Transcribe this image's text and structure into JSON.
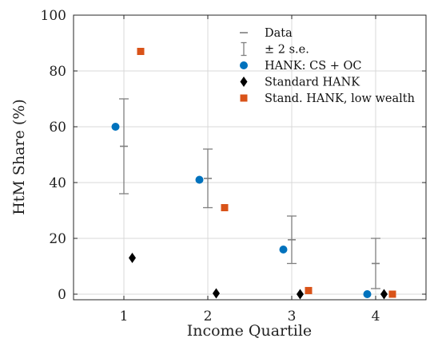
{
  "chart_data": {
    "type": "scatter",
    "xlabel": "Income Quartile",
    "ylabel": "HtM Share (%)",
    "xlim": [
      0.4,
      4.6
    ],
    "ylim": [
      -2,
      100
    ],
    "x_ticks": [
      "1",
      "2",
      "3",
      "4"
    ],
    "y_ticks": [
      "0",
      "20",
      "40",
      "60",
      "80",
      "100"
    ],
    "grid": true,
    "legend_placement": "top-right",
    "colors": {
      "data": "#7f7f7f",
      "hank_cs_oc": "#0072bd",
      "standard_hank": "#000000",
      "low_wealth": "#d95319"
    },
    "legend": [
      {
        "key": "data",
        "label": "Data"
      },
      {
        "key": "se",
        "label": "± 2 s.e."
      },
      {
        "key": "hank_cs_oc",
        "label": "HANK: CS + OC"
      },
      {
        "key": "standard_hank",
        "label": "Standard HANK"
      },
      {
        "key": "low_wealth",
        "label": "Stand. HANK, low wealth"
      }
    ],
    "series": [
      {
        "key": "data",
        "marker": "dash",
        "x": [
          1,
          2,
          3,
          4
        ],
        "y": [
          53,
          41.5,
          19.5,
          11
        ],
        "lower": [
          36,
          31,
          11,
          2
        ],
        "upper": [
          70,
          52,
          28,
          20
        ]
      },
      {
        "key": "hank_cs_oc",
        "marker": "circle",
        "x": [
          0.9,
          1.9,
          2.9,
          3.9
        ],
        "y": [
          60,
          41,
          16,
          0
        ]
      },
      {
        "key": "standard_hank",
        "marker": "diamond",
        "x": [
          1.1,
          2.1,
          3.1,
          4.1
        ],
        "y": [
          13,
          0.3,
          0,
          0
        ]
      },
      {
        "key": "low_wealth",
        "marker": "square",
        "x": [
          1.2,
          2.2,
          3.2,
          4.2
        ],
        "y": [
          87,
          31,
          1.3,
          0
        ]
      }
    ]
  }
}
